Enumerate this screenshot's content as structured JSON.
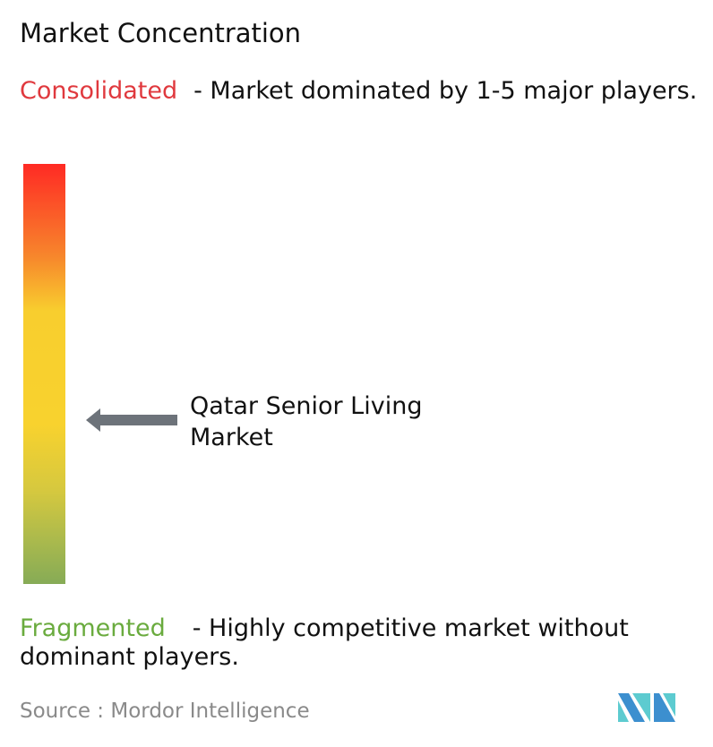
{
  "title": "Market Concentration",
  "consolidated": {
    "label": "Consolidated",
    "description": "- Market dominated by 1-5 major players.",
    "color": "#e0393e"
  },
  "fragmented": {
    "label": "Fragmented",
    "description": "- Highly competitive market without dominant players.",
    "color": "#6aab3e"
  },
  "market": {
    "name": "Qatar Senior Living Market",
    "position_from_fragmented": 0.39
  },
  "scale_colors": [
    "#ff2a24",
    "#f7862c",
    "#f8d22e",
    "#86ab56"
  ],
  "arrow_color": "#6d737a",
  "source": "Source :  Mordor Intelligence",
  "logo": {
    "name": "Mordor Intelligence logo",
    "colors": [
      "#3c8fcf",
      "#5dcbd0"
    ]
  }
}
